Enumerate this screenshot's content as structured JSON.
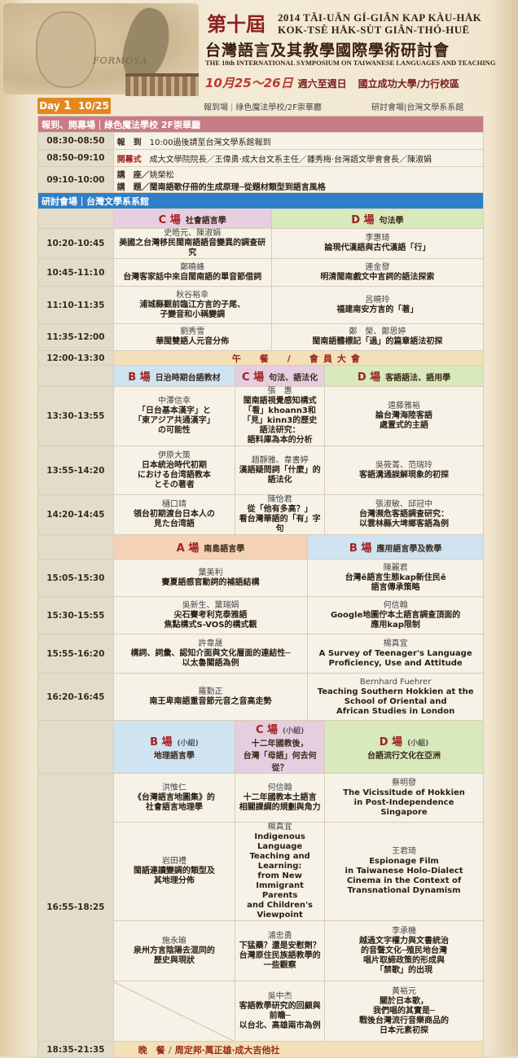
{
  "header": {
    "title_big": "第十屆",
    "title_rom1": "2014 TÂI-UÂN GÍ-GIÂN KAP KÀU-HÅK",
    "title_rom2": "KOK-TSÈ HÅK-SÙT GIÂN-THÓ-HUĒ",
    "title_cn": "台灣語言及其教學國際學術研討會",
    "title_en": "THE 10th INTERNATIONAL SYMPOSIUM ON TAIWANESE LANGUAGES AND TEACHING",
    "date": "10月25～26日",
    "weekday": "週六至週日",
    "place": "國立成功大學/力行校區",
    "formosa": "FORMOSA"
  },
  "day": {
    "label": "Day",
    "num": "1",
    "date": "10/25",
    "reg": "報到場",
    "reg_place": "綠色魔法學校/2F崇華廳",
    "sess": "研討會場",
    "sess_place": "台灣文學系系館"
  },
  "sec1": {
    "title": "報到、開幕場",
    "sep": "｜",
    "place": "綠色魔法學校 2F崇華廳"
  },
  "open": [
    {
      "time": "08:30-08:50",
      "l1": "報　到",
      "t1": "10:00過後請至台灣文學系館報到"
    },
    {
      "time": "08:50-09:10",
      "l1": "開幕式",
      "t1": "成大文學院院長／王偉勇‧成大台文系主任／鍾秀梅‧台灣語文學會會長／陳淑娟"
    },
    {
      "time": "09:10-10:00",
      "l1": "講　座／",
      "t1": "姚榮松",
      "l2": "講　題／",
      "t2": "閩南語歌仔冊的生成原理─從題材類型到語言風格"
    }
  ],
  "sec2": {
    "title": "研討會場",
    "sep": "｜",
    "place": "台灣文學系系館"
  },
  "p1": {
    "h": [
      {
        "letter": "C 場",
        "name": "社會語言學"
      },
      {
        "letter": "D 場",
        "name": "句法學"
      }
    ],
    "rows": [
      {
        "time": "10:20-10:45",
        "c": [
          "史皓元、陳淑娟",
          "美國之台灣移民閩南語語音變異的調查研究"
        ],
        "d": [
          "李惠琦",
          "論現代漢語與古代漢語「行」"
        ]
      },
      {
        "time": "10:45-11:10",
        "c": [
          "鄭曉峰",
          "台灣客家話中來自閩南語的單音節借詞"
        ],
        "d": [
          "連金發",
          "明清閩南戲文中言詞的語法探索"
        ]
      },
      {
        "time": "11:10-11:35",
        "c": [
          "秋谷裕幸",
          "浦城縣觀前臨江方言的子尾、",
          "子變音和小稱變調"
        ],
        "d": [
          "呂曉玲",
          "福建南安方言的「著」"
        ]
      },
      {
        "time": "11:35-12:00",
        "c": [
          "劉秀雪",
          "華閩雙語人元音分佈"
        ],
        "d": [
          "鄭　榮、鄭思婷",
          "閩南語體標記「過」的篇章語法初探"
        ]
      }
    ]
  },
  "lunch": {
    "time": "12:00-13:30",
    "text": "午　餐　/　會員大會"
  },
  "p2": {
    "h": [
      {
        "letter": "B 場",
        "name": "日治時期台語教材"
      },
      {
        "letter": "C 場",
        "name": "句法、語法化"
      },
      {
        "letter": "D 場",
        "name": "客語語法、語用學"
      }
    ],
    "rows": [
      {
        "time": "13:30-13:55",
        "b": [
          "中澤信幸",
          "「日台基本漢字」と",
          "「東アジア共通漢字」",
          "の可能性"
        ],
        "c": [
          "張　惠",
          "閩南語視覺感知構式",
          "「看」khoann3和",
          "「見」kinn3的歷史語法研究：",
          "語料庫為本的分析"
        ],
        "d": [
          "遠藤雅裕",
          "論台灣海陸客語",
          "處置式的主語"
        ]
      },
      {
        "time": "13:55-14:20",
        "b": [
          "伊原大策",
          "日本統治時代初期",
          "における台湾語教本",
          "とその著者"
        ],
        "c": [
          "趙靜雅、韋書婷",
          "漢語疑問詞「什麼」的",
          "語法化"
        ],
        "d": [
          "吳筱菁、范瑞玲",
          "客語溝通誤解現象的初探"
        ]
      },
      {
        "time": "14:20-14:45",
        "b": [
          "樋口靖",
          "領台初期渡台日本人の",
          "見た台湾語"
        ],
        "c": [
          "陳怡君",
          "從「他有多高？」",
          "看台灣華語的「有」字句"
        ],
        "d": [
          "張淑敏、邱冠中",
          "台灣瀕危客語調查研究：",
          "以雲林縣大埤鄉客語為例"
        ]
      }
    ]
  },
  "p3": {
    "h": [
      {
        "letter": "A 場",
        "name": "南島語言學"
      },
      {
        "letter": "B 場",
        "name": "應用語言學及教學"
      }
    ],
    "rows": [
      {
        "time": "15:05-15:30",
        "a": [
          "葉美利",
          "賽夏語感官動詞的補語結構"
        ],
        "b": [
          "陳麗君",
          "台灣ê語言生態kap新住民ê",
          "語言傳承策略"
        ]
      },
      {
        "time": "15:30-15:55",
        "a": [
          "吳新生、葉瑞娟",
          "尖石賽考利克泰雅語",
          "焦點構式S-VOS的構式觀"
        ],
        "b": [
          "何信翰",
          "Google地圖佇本土語言調查頂面的",
          "應用kap限制"
        ]
      },
      {
        "time": "15:55-16:20",
        "a": [
          "許韋晟",
          "構詞、詞彙、認知介面與文化層面的連結性─",
          "以太魯閣語為例"
        ],
        "b": [
          "楊真宜",
          "A Survey of Teenager's Language",
          "Proficiency, Use and Attitude"
        ]
      },
      {
        "time": "16:20-16:45",
        "a": [
          "羅勤正",
          "南王卑南語重音節元音之音高走勢"
        ],
        "b": [
          "Bernhard Fuehrer",
          "Teaching Southern Hokkien at the",
          "School of Oriental and",
          "African Studies in London"
        ]
      }
    ]
  },
  "p4": {
    "h": [
      {
        "letter": "B 場",
        "small": "(小組)",
        "name": "地理語言學"
      },
      {
        "letter": "C 場",
        "small": "(小組)",
        "name": "十二年國教後，",
        "name2": "台灣「母語」何去何從？"
      },
      {
        "letter": "D 場",
        "small": "(小組)",
        "name": "台語流行文化在亞洲"
      }
    ],
    "time": "16:55-18:25",
    "rows": [
      {
        "b": [
          "洪惟仁",
          "《台灣語言地圖集》的",
          "社會語言地理學"
        ],
        "c": [
          "何信翰",
          "十二年國教本土語言",
          "相關課綱的規劃與角力"
        ],
        "d": [
          "蔡明發",
          "The Vicissitude of Hokkien",
          "in Post-Independence",
          "Singapore"
        ]
      },
      {
        "b": [
          "岩田禮",
          "閩語連讀變調的類型及",
          "其地理分佈"
        ],
        "c": [
          "楊真宜",
          "Indigenous Language",
          "Teaching and Learning:",
          "from New Immigrant Parents",
          "and Children's Viewpoint"
        ],
        "d": [
          "王君琦",
          "Espionage Film",
          "in Taiwanese Holo-Dialect",
          "Cinema in the Context of",
          "Transnational Dynamism"
        ]
      },
      {
        "b": [
          "施永瑜",
          "泉州方言陰陽去混同的",
          "歷史與現狀"
        ],
        "c": [
          "浦忠勇",
          "下猛藥？還是安慰劑？",
          "台灣原住民族語教學的",
          "一些觀察"
        ],
        "d": [
          "李承機",
          "越過文字權力與文書統治",
          "的音聲文化─殖民地台灣",
          "唱片取締政策的形成與",
          "「禁歌」的出現"
        ]
      },
      {
        "b": [],
        "c": [
          "吳中杰",
          "客語教學研究的回顧與前瞻─",
          "以台北、高雄兩市為例"
        ],
        "d": [
          "黃裕元",
          "關於日本歌，",
          "我們唱的其實是─",
          "戰後台灣流行音樂商品的",
          "日本元素初探"
        ]
      }
    ]
  },
  "dinner": {
    "time": "18:35-21:35",
    "w": "晚　餐",
    "s": "/",
    "a": "周定邦",
    "b": "萬正雄",
    "c": "成大吉他社",
    "dot": "‧"
  }
}
